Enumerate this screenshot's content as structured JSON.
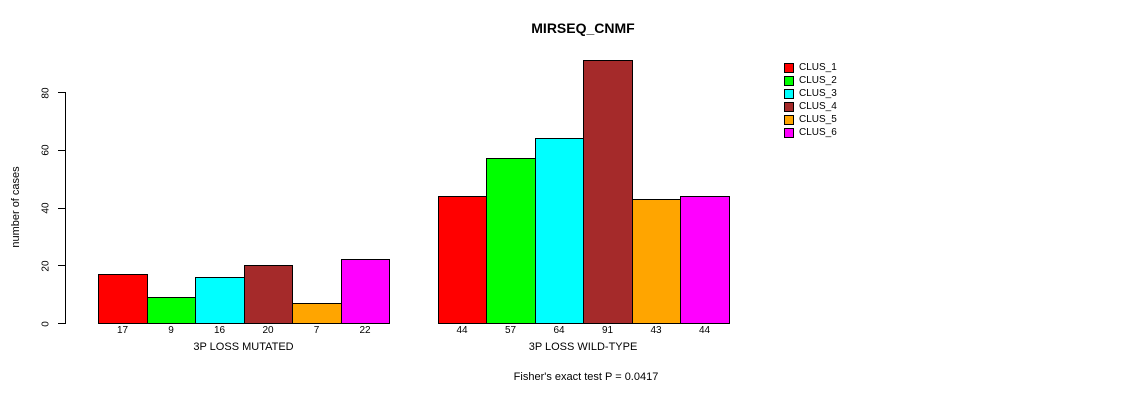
{
  "title": "MIRSEQ_CNMF",
  "annotation": "Fisher's exact test P = 0.0417",
  "chart_data": {
    "type": "bar",
    "title": "MIRSEQ_CNMF",
    "xlabel": "",
    "ylabel": "number of cases",
    "categories": [
      "3P LOSS MUTATED",
      "3P LOSS WILD-TYPE"
    ],
    "series": [
      {
        "name": "CLUS_1",
        "color": "#FF0000",
        "values": [
          17,
          44
        ]
      },
      {
        "name": "CLUS_2",
        "color": "#00FF00",
        "values": [
          9,
          57
        ]
      },
      {
        "name": "CLUS_3",
        "color": "#00FFFF",
        "values": [
          16,
          64
        ]
      },
      {
        "name": "CLUS_4",
        "color": "#A52A2A",
        "values": [
          20,
          91
        ]
      },
      {
        "name": "CLUS_5",
        "color": "#FFA500",
        "values": [
          7,
          43
        ]
      },
      {
        "name": "CLUS_6",
        "color": "#FF00FF",
        "values": [
          22,
          44
        ]
      }
    ],
    "yticks": [
      0,
      20,
      40,
      60,
      80
    ],
    "ylim": [
      0,
      91
    ],
    "bar_value_labels_shown": true,
    "grid": false,
    "legend_position": "right",
    "annotation": "Fisher's exact test P = 0.0417",
    "axis_color": "#000000",
    "bar_border_color": "#000000",
    "background_color": "#FFFFFF"
  }
}
